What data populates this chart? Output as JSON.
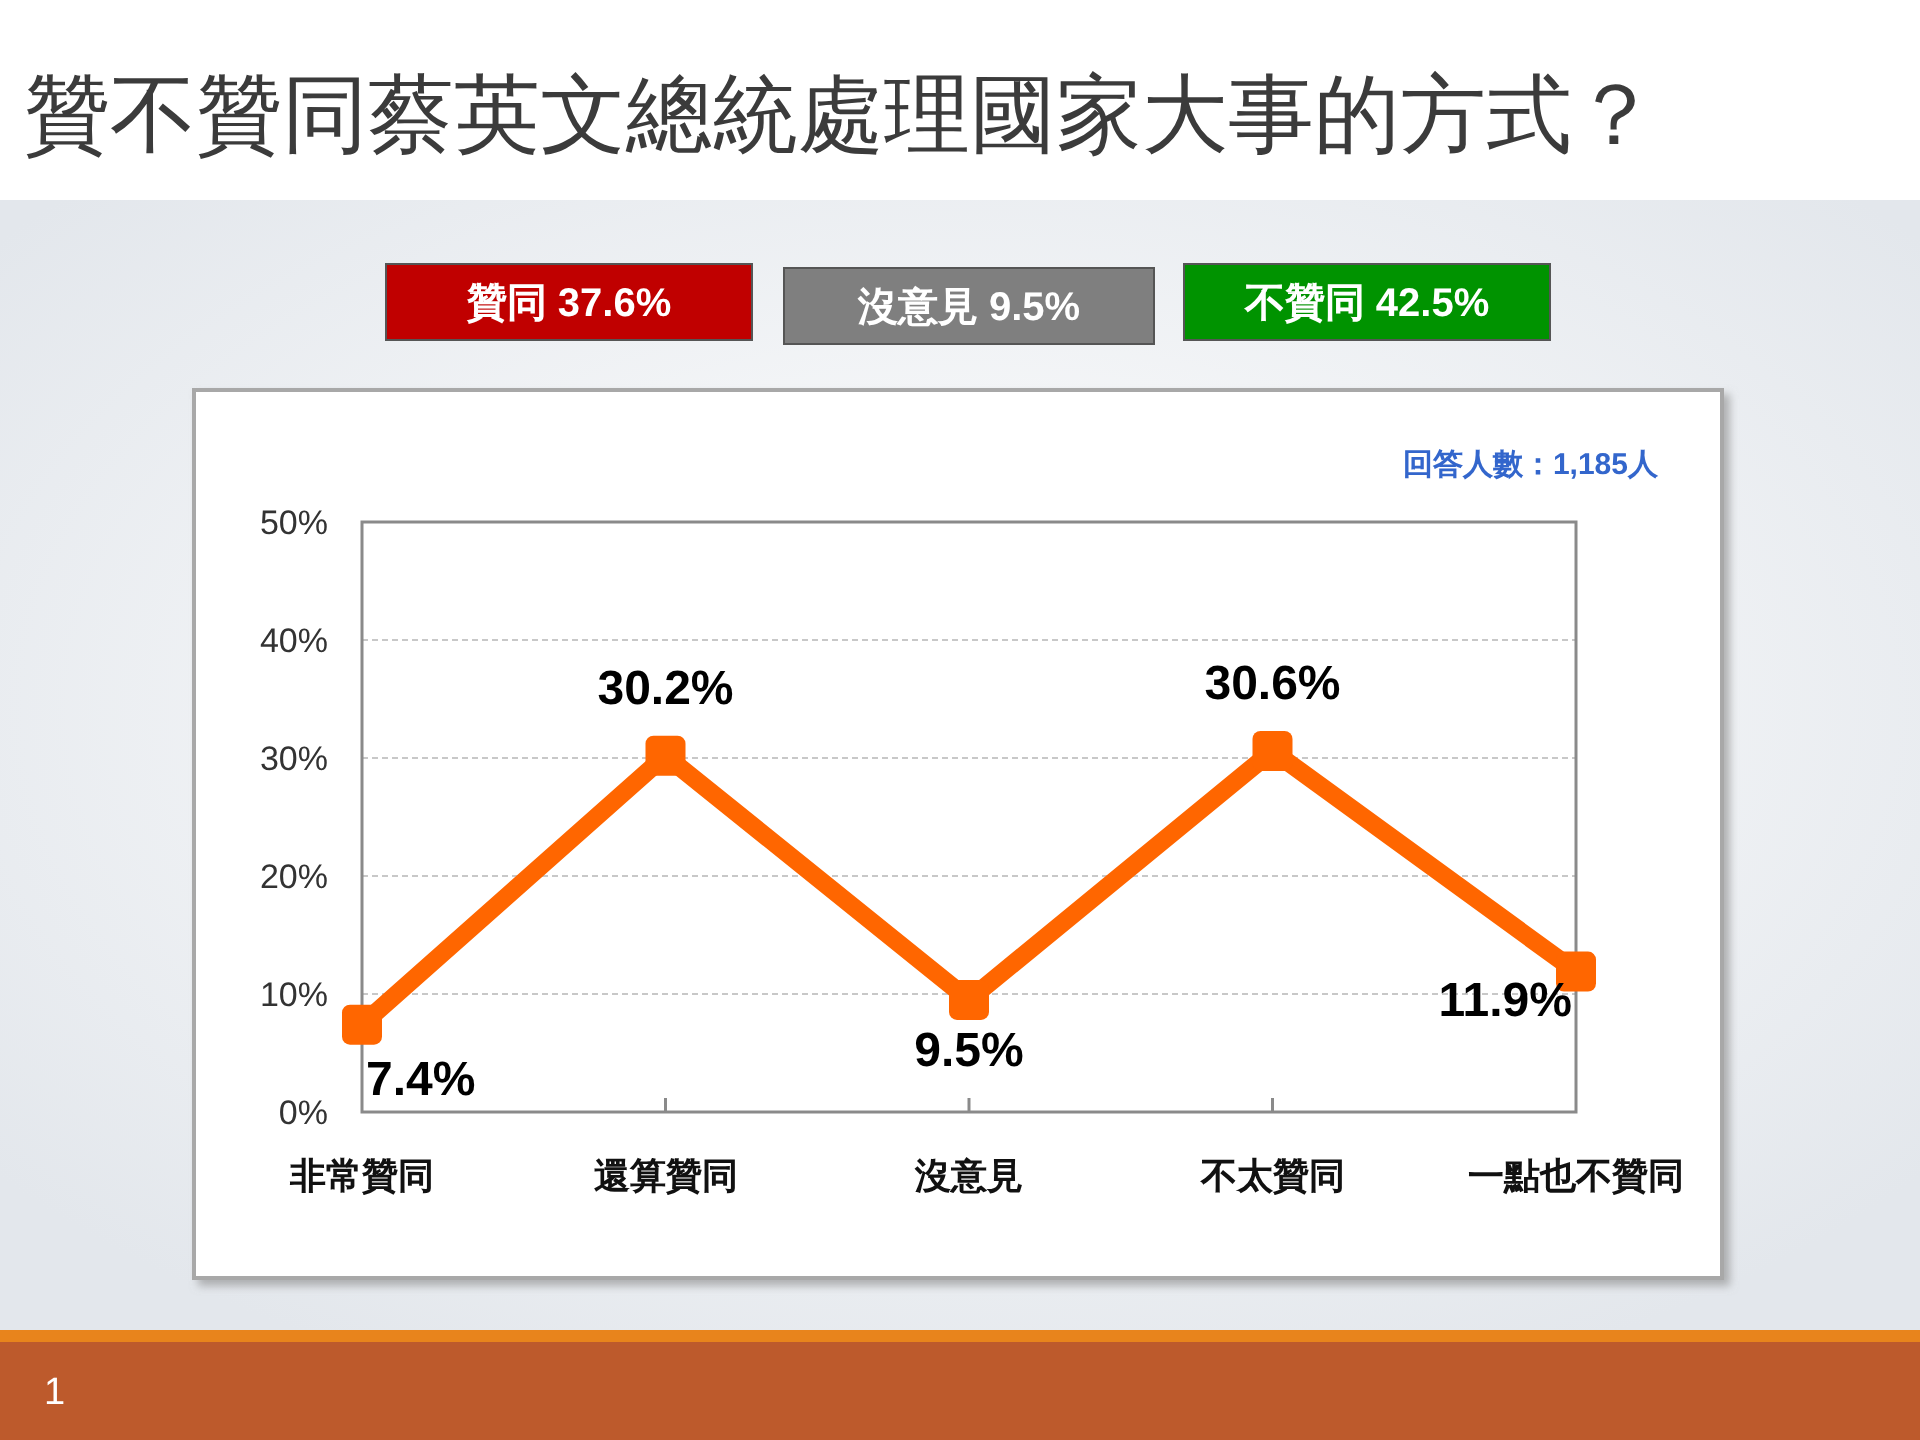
{
  "chart_data": {
    "type": "line",
    "title": "贊不贊同蔡英文總統處理國家大事的方式？",
    "categories": [
      "非常贊同",
      "還算贊同",
      "沒意見",
      "不太贊同",
      "一點也不贊同"
    ],
    "series": [
      {
        "color": "#ff6600",
        "values": [
          7.4,
          30.2,
          9.5,
          30.6,
          11.9
        ],
        "value_labels": [
          "7.4%",
          "30.2%",
          "9.5%",
          "30.6%",
          "11.9%"
        ]
      }
    ],
    "ylim": [
      0,
      50
    ],
    "yticks": [
      {
        "value": 0,
        "label": "0%"
      },
      {
        "value": 10,
        "label": "10%"
      },
      {
        "value": 20,
        "label": "20%"
      },
      {
        "value": 30,
        "label": "30%"
      },
      {
        "value": 40,
        "label": "40%"
      },
      {
        "value": 50,
        "label": "50%"
      }
    ],
    "grid": "y",
    "marker": "square",
    "line_style": "solid",
    "annotations": [
      "贊同 37.6%",
      "沒意見 9.5%",
      "不贊同 42.5%",
      "回答人數：1,185人",
      "1"
    ]
  }
}
